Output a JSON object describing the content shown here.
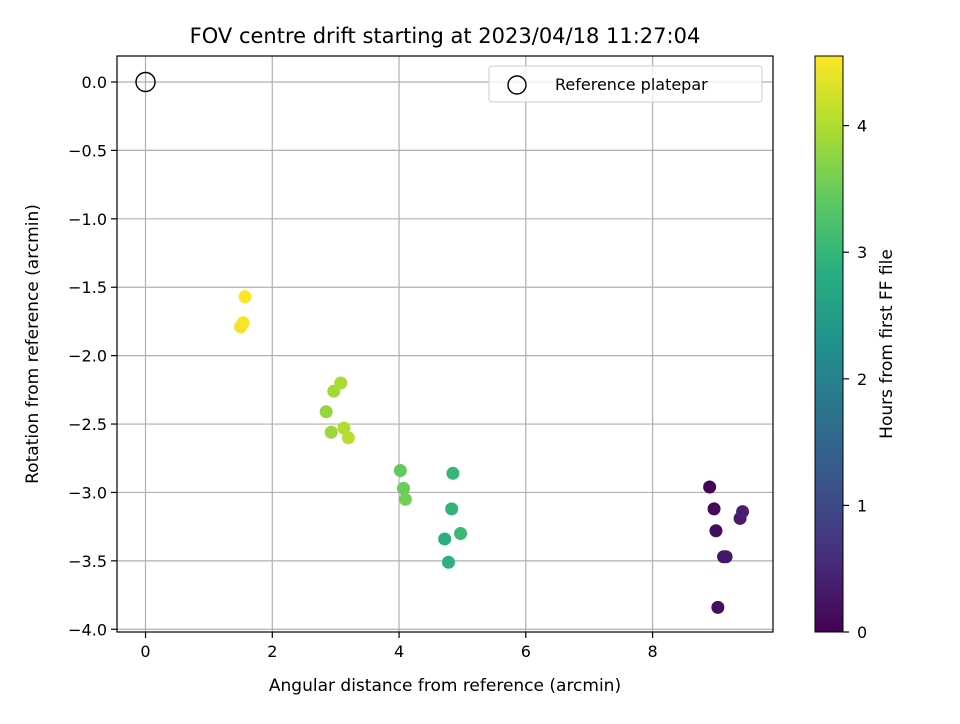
{
  "chart_data": {
    "type": "scatter",
    "title": "FOV centre drift starting at 2023/04/18 11:27:04",
    "xlabel": "Angular distance from reference (arcmin)",
    "ylabel": "Rotation from reference (arcmin)",
    "xlim": [
      -0.45,
      9.9
    ],
    "ylim": [
      -4.02,
      0.19
    ],
    "grid": true,
    "xticks": [
      0,
      2,
      4,
      6,
      8
    ],
    "xtick_labels": [
      "0",
      "2",
      "4",
      "6",
      "8"
    ],
    "yticks": [
      0.0,
      -0.5,
      -1.0,
      -1.5,
      -2.0,
      -2.5,
      -3.0,
      -3.5,
      -4.0
    ],
    "ytick_labels": [
      "0.0",
      "−0.5",
      "−1.0",
      "−1.5",
      "−2.0",
      "−2.5",
      "−3.0",
      "−3.5",
      "−4.0"
    ],
    "reference": {
      "label": "Reference platepar",
      "x": 0,
      "y": 0
    },
    "legend_position": "upper right",
    "colorbar": {
      "label": "Hours from first FF file",
      "colormap": "viridis",
      "range": [
        0,
        4.55
      ],
      "ticks": [
        0,
        1,
        2,
        3,
        4
      ],
      "tick_labels": [
        "0",
        "1",
        "2",
        "3",
        "4"
      ]
    },
    "points": [
      {
        "x": 8.9,
        "y": -2.96,
        "hours": 0.05
      },
      {
        "x": 8.97,
        "y": -3.12,
        "hours": 0.1
      },
      {
        "x": 9.0,
        "y": -3.28,
        "hours": 0.15
      },
      {
        "x": 9.03,
        "y": -3.84,
        "hours": 0.2
      },
      {
        "x": 9.12,
        "y": -3.47,
        "hours": 0.25
      },
      {
        "x": 9.16,
        "y": -3.47,
        "hours": 0.3
      },
      {
        "x": 9.38,
        "y": -3.19,
        "hours": 0.35
      },
      {
        "x": 9.42,
        "y": -3.14,
        "hours": 0.4
      },
      {
        "x": 4.72,
        "y": -3.34,
        "hours": 2.85
      },
      {
        "x": 4.78,
        "y": -3.51,
        "hours": 2.9
      },
      {
        "x": 4.83,
        "y": -3.12,
        "hours": 2.95
      },
      {
        "x": 4.85,
        "y": -2.86,
        "hours": 3.0
      },
      {
        "x": 4.97,
        "y": -3.3,
        "hours": 3.05
      },
      {
        "x": 4.02,
        "y": -2.84,
        "hours": 3.45
      },
      {
        "x": 4.07,
        "y": -2.97,
        "hours": 3.5
      },
      {
        "x": 4.1,
        "y": -3.05,
        "hours": 3.55
      },
      {
        "x": 2.85,
        "y": -2.41,
        "hours": 3.8
      },
      {
        "x": 2.93,
        "y": -2.56,
        "hours": 3.85
      },
      {
        "x": 2.97,
        "y": -2.26,
        "hours": 3.9
      },
      {
        "x": 3.08,
        "y": -2.2,
        "hours": 3.95
      },
      {
        "x": 3.13,
        "y": -2.53,
        "hours": 4.0
      },
      {
        "x": 3.2,
        "y": -2.6,
        "hours": 4.05
      },
      {
        "x": 1.5,
        "y": -1.79,
        "hours": 4.45
      },
      {
        "x": 1.54,
        "y": -1.76,
        "hours": 4.5
      },
      {
        "x": 1.57,
        "y": -1.57,
        "hours": 4.55
      }
    ]
  }
}
